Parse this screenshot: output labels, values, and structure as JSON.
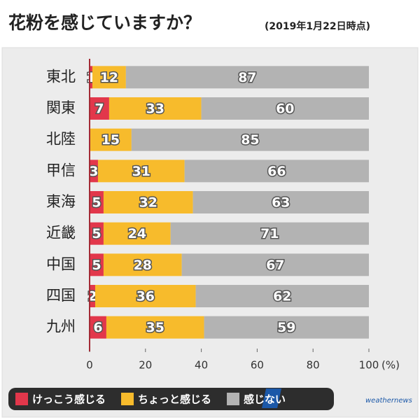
{
  "chart_data": {
    "type": "stacked-bar-horizontal",
    "title": "花粉を感じていますか？",
    "subtitle": "(2019年1月22日時点)",
    "categories": [
      "東北",
      "関東",
      "北陸",
      "甲信",
      "東海",
      "近畿",
      "中国",
      "四国",
      "九州"
    ],
    "series": [
      {
        "name": "けっこう感じる",
        "color": "#e2374b",
        "values": [
          1,
          7,
          0,
          3,
          5,
          5,
          5,
          2,
          6
        ]
      },
      {
        "name": "ちょっと感じる",
        "color": "#f7bb2c",
        "values": [
          12,
          33,
          15,
          31,
          32,
          24,
          28,
          36,
          35
        ]
      },
      {
        "name": "感じない",
        "color": "#b3b3b3",
        "values": [
          87,
          60,
          85,
          66,
          63,
          71,
          67,
          62,
          59
        ]
      }
    ],
    "xlim": [
      0,
      100
    ],
    "xticks": [
      0,
      20,
      40,
      60,
      80,
      100
    ],
    "xlabel": "(%)",
    "source": "weathernews"
  }
}
